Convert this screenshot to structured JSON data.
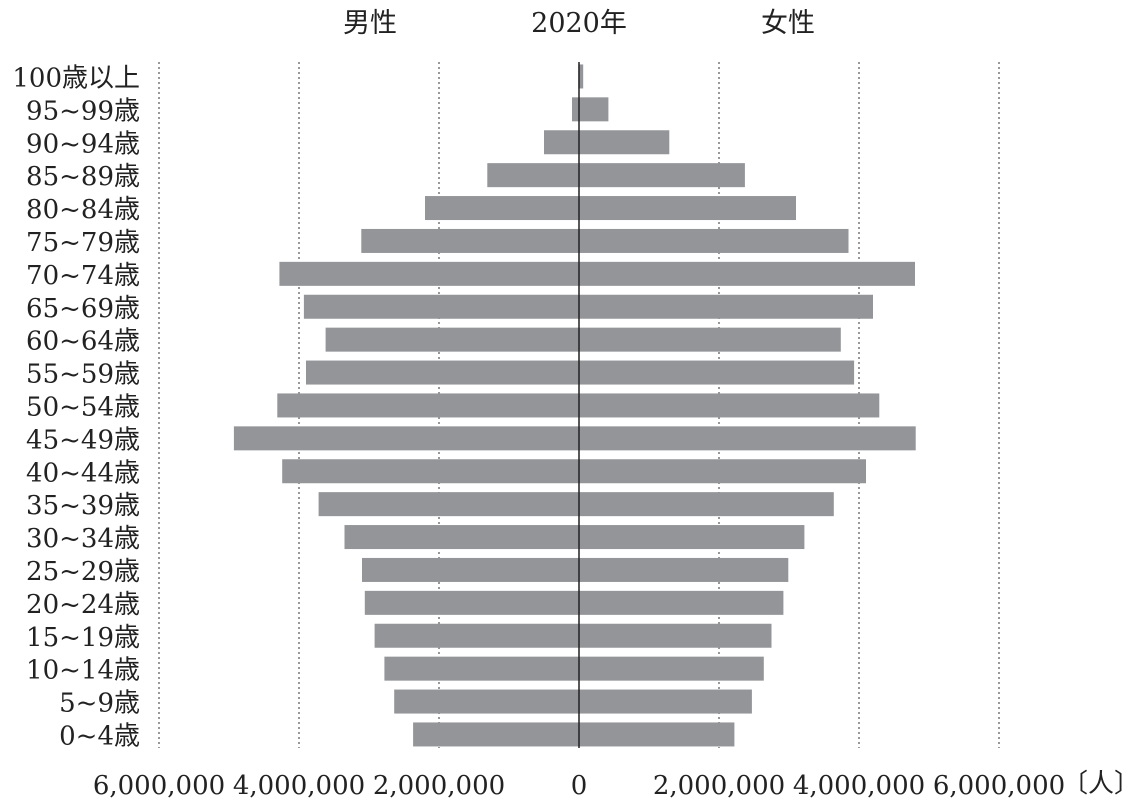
{
  "header": {
    "male": "男性",
    "year": "2020年",
    "female": "女性"
  },
  "chart_data": {
    "type": "bar",
    "orientation": "horizontal-population-pyramid",
    "categories": [
      "100歳以上",
      "95~99歳",
      "90~94歳",
      "85~89歳",
      "80~84歳",
      "75~79歳",
      "70~74歳",
      "65~69歳",
      "60~64歳",
      "55~59歳",
      "50~54歳",
      "45~49歳",
      "40~44歳",
      "35~39歳",
      "30~34歳",
      "25~29歳",
      "20~24歳",
      "15~19歳",
      "10~14歳",
      "5~9歳",
      "0~4歳"
    ],
    "series": [
      {
        "name": "男性",
        "values": [
          10000,
          100000,
          500000,
          1310000,
          2200000,
          3110000,
          4280000,
          3930000,
          3620000,
          3900000,
          4310000,
          4930000,
          4240000,
          3720000,
          3350000,
          3100000,
          3060000,
          2920000,
          2780000,
          2640000,
          2370000
        ]
      },
      {
        "name": "女性",
        "values": [
          60000,
          420000,
          1290000,
          2370000,
          3100000,
          3850000,
          4800000,
          4200000,
          3740000,
          3930000,
          4290000,
          4810000,
          4100000,
          3640000,
          3220000,
          2990000,
          2920000,
          2750000,
          2640000,
          2470000,
          2220000
        ]
      }
    ],
    "xlim": [
      -6000000,
      6000000
    ],
    "x_ticks": [
      -6000000,
      -4000000,
      -2000000,
      0,
      2000000,
      4000000,
      6000000
    ],
    "x_tick_labels": [
      "6,000,000",
      "4,000,000",
      "2,000,000",
      "0",
      "2,000,000",
      "4,000,000",
      "6,000,000"
    ],
    "x_unit": "〔人〕",
    "title": "2020年",
    "grid": "vertical-dotted",
    "bar_color": "#939598"
  }
}
